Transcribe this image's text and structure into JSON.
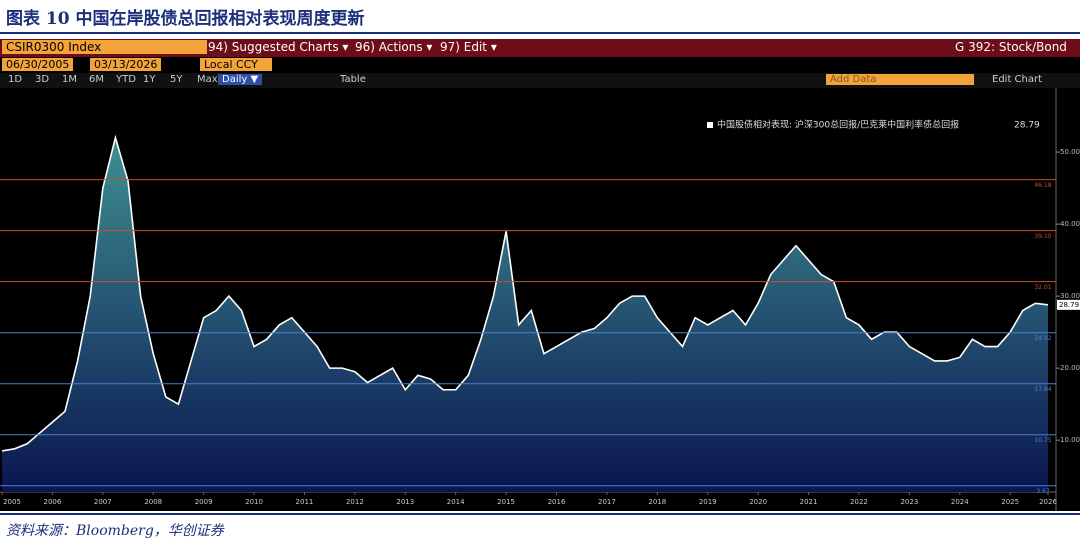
{
  "header": {
    "title": "图表 10  中国在岸股债总回报相对表现周度更新"
  },
  "toolbar": {
    "ticker": "CSIR0300 Index",
    "menus": [
      "94) Suggested Charts ▾",
      "96) Actions ▾",
      "97) Edit ▾"
    ],
    "chart_name": "G 392: Stock/Bond",
    "start_date": "06/30/2005",
    "end_date": "03/13/2026",
    "currency": "Local CCY",
    "periods": [
      "1D",
      "3D",
      "1M",
      "6M",
      "YTD",
      "1Y",
      "5Y",
      "Max"
    ],
    "frequency": "Daily ▼",
    "table": "Table",
    "add_data": "Add Data",
    "edit_chart": "Edit Chart"
  },
  "chart_data": {
    "type": "area",
    "categories": [
      "2005",
      null,
      null,
      null,
      "2006",
      null,
      null,
      null,
      "2007",
      null,
      null,
      null,
      "2008",
      null,
      null,
      null,
      "2009",
      null,
      null,
      null,
      "2010",
      null,
      null,
      null,
      "2011",
      null,
      null,
      null,
      "2012",
      null,
      null,
      null,
      "2013",
      null,
      null,
      null,
      "2014",
      null,
      null,
      null,
      "2015",
      null,
      null,
      null,
      "2016",
      null,
      null,
      null,
      "2017",
      null,
      null,
      null,
      "2018",
      null,
      null,
      null,
      "2019",
      null,
      null,
      null,
      "2020",
      null,
      null,
      null,
      "2021",
      null,
      null,
      null,
      "2022",
      null,
      null,
      null,
      "2023",
      null,
      null,
      null,
      "2024",
      null,
      null,
      null,
      "2025",
      null,
      null,
      "2026"
    ],
    "series": [
      {
        "name": "中国股债相对表现: 沪深300总回报/巴克莱中国利率债总回报",
        "color": "#ffffff",
        "values": [
          8.5,
          8.8,
          9.5,
          11,
          12.5,
          14,
          21,
          30,
          45,
          52,
          46,
          30,
          22,
          16,
          15,
          21,
          27,
          28,
          30,
          28,
          23,
          24,
          26,
          27,
          25,
          23,
          20,
          20,
          19.5,
          18,
          19,
          20,
          17,
          19,
          18.5,
          17,
          17,
          19,
          24,
          30,
          39,
          26,
          28,
          22,
          23,
          24,
          25,
          25.5,
          27,
          29,
          30,
          30,
          27,
          25,
          23,
          27,
          26,
          27,
          28,
          26,
          29,
          33,
          35,
          37,
          35,
          33,
          32,
          27,
          26,
          24,
          25,
          25,
          23,
          22,
          21,
          21,
          21.5,
          24,
          23,
          23,
          25,
          28,
          29,
          28.79
        ]
      }
    ],
    "ylim": [
      2.8,
      58.9
    ],
    "yticks": [
      {
        "value": 10,
        "label": "10.00"
      },
      {
        "value": 20,
        "label": "20.00"
      },
      {
        "value": 30,
        "label": "30.00"
      },
      {
        "value": 40,
        "label": "40.00"
      },
      {
        "value": 50,
        "label": "50.00"
      }
    ],
    "reference_lines": [
      {
        "value": 46.18,
        "color": "#c8502a"
      },
      {
        "value": 39.1,
        "label": "39.10",
        "color": "#c8502a"
      },
      {
        "value": 32.01,
        "color": "#c8502a"
      },
      {
        "value": 24.92,
        "color": "#4f7fd0"
      },
      {
        "value": 17.84,
        "color": "#4f7fd0"
      },
      {
        "value": 10.75,
        "color": "#4f7fd0"
      },
      {
        "value": 3.67,
        "color": "#4f7fd0"
      }
    ]
  },
  "footer": {
    "source": "资料来源：Bloomberg，华创证券"
  }
}
